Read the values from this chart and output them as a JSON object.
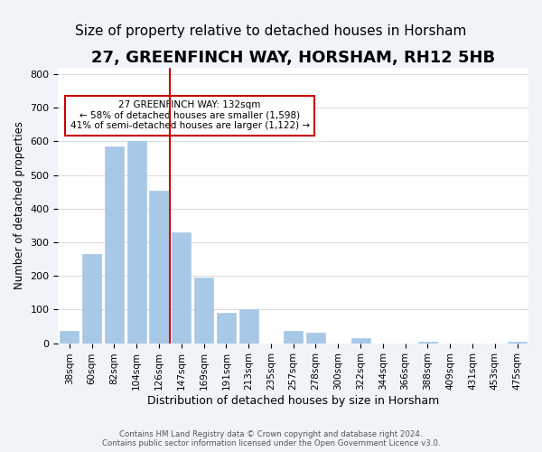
{
  "title": "27, GREENFINCH WAY, HORSHAM, RH12 5HB",
  "subtitle": "Size of property relative to detached houses in Horsham",
  "xlabel": "Distribution of detached houses by size in Horsham",
  "ylabel": "Number of detached properties",
  "bar_labels": [
    "38sqm",
    "60sqm",
    "82sqm",
    "104sqm",
    "126sqm",
    "147sqm",
    "169sqm",
    "191sqm",
    "213sqm",
    "235sqm",
    "257sqm",
    "278sqm",
    "300sqm",
    "322sqm",
    "344sqm",
    "366sqm",
    "388sqm",
    "409sqm",
    "431sqm",
    "453sqm",
    "475sqm"
  ],
  "bar_values": [
    37,
    265,
    585,
    601,
    452,
    330,
    195,
    90,
    100,
    0,
    37,
    32,
    0,
    15,
    0,
    0,
    5,
    0,
    0,
    0,
    5
  ],
  "bar_color": "#a8c8e8",
  "vline_x": 4.5,
  "vline_color": "#cc0000",
  "annotation_text": "27 GREENFINCH WAY: 132sqm\n← 58% of detached houses are smaller (1,598)\n41% of semi-detached houses are larger (1,122) →",
  "annotation_box_color": "#ffffff",
  "annotation_box_edgecolor": "#cc0000",
  "ylim": [
    0,
    820
  ],
  "yticks": [
    0,
    100,
    200,
    300,
    400,
    500,
    600,
    700,
    800
  ],
  "footer_text": "Contains HM Land Registry data © Crown copyright and database right 2024.\nContains public sector information licensed under the Open Government Licence v3.0.",
  "bg_color": "#f0f4f8",
  "plot_bg_color": "#ffffff",
  "title_fontsize": 13,
  "subtitle_fontsize": 11
}
